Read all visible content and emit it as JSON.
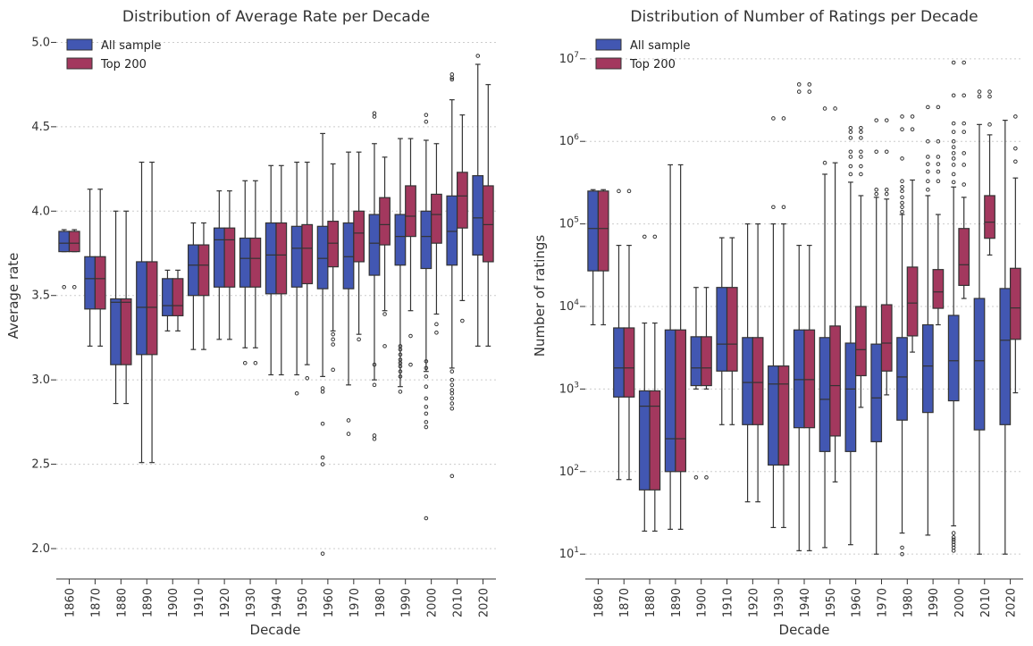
{
  "colors": {
    "all": "#4257b2",
    "top": "#a3385e",
    "edge": "#333333"
  },
  "chart_data": [
    {
      "type": "box",
      "title": "Distribution of Average Rate per Decade",
      "xlabel": "Decade",
      "ylabel": "Average rate",
      "ylim": [
        1.82,
        5.05
      ],
      "scale": "linear",
      "yticks": [
        2.0,
        2.5,
        3.0,
        3.5,
        4.0,
        4.5,
        5.0
      ],
      "ytick_labels": [
        "2.0",
        "2.5",
        "3.0",
        "3.5",
        "4.0",
        "4.5",
        "5.0"
      ],
      "grid": true,
      "legend_position": "top-left",
      "categories": [
        "1860",
        "1870",
        "1880",
        "1890",
        "1900",
        "1910",
        "1920",
        "1930",
        "1940",
        "1950",
        "1960",
        "1970",
        "1980",
        "1990",
        "2000",
        "2010",
        "2020"
      ],
      "series": [
        {
          "name": "All sample",
          "boxes": [
            {
              "wl": 3.76,
              "q1": 3.76,
              "med": 3.81,
              "q3": 3.88,
              "wh": 3.89,
              "fl": [
                3.55
              ]
            },
            {
              "wl": 3.2,
              "q1": 3.42,
              "med": 3.6,
              "q3": 3.73,
              "wh": 4.13,
              "fl": []
            },
            {
              "wl": 2.86,
              "q1": 3.09,
              "med": 3.46,
              "q3": 3.48,
              "wh": 4.0,
              "fl": []
            },
            {
              "wl": 2.51,
              "q1": 3.15,
              "med": 3.43,
              "q3": 3.7,
              "wh": 4.29,
              "fl": []
            },
            {
              "wl": 3.29,
              "q1": 3.38,
              "med": 3.44,
              "q3": 3.6,
              "wh": 3.65,
              "fl": []
            },
            {
              "wl": 3.18,
              "q1": 3.5,
              "med": 3.68,
              "q3": 3.8,
              "wh": 3.93,
              "fl": []
            },
            {
              "wl": 3.24,
              "q1": 3.55,
              "med": 3.83,
              "q3": 3.9,
              "wh": 4.12,
              "fl": []
            },
            {
              "wl": 3.19,
              "q1": 3.55,
              "med": 3.72,
              "q3": 3.84,
              "wh": 4.18,
              "fl": [
                3.1
              ]
            },
            {
              "wl": 3.03,
              "q1": 3.51,
              "med": 3.74,
              "q3": 3.93,
              "wh": 4.27,
              "fl": []
            },
            {
              "wl": 3.03,
              "q1": 3.55,
              "med": 3.78,
              "q3": 3.91,
              "wh": 4.29,
              "fl": [
                2.92
              ]
            },
            {
              "wl": 3.02,
              "q1": 3.54,
              "med": 3.72,
              "q3": 3.91,
              "wh": 4.46,
              "fl": [
                2.95,
                2.93,
                2.74,
                2.54,
                2.5,
                1.97
              ]
            },
            {
              "wl": 2.97,
              "q1": 3.54,
              "med": 3.73,
              "q3": 3.93,
              "wh": 4.35,
              "fl": [
                2.76,
                2.68
              ]
            },
            {
              "wl": 3.0,
              "q1": 3.62,
              "med": 3.81,
              "q3": 3.98,
              "wh": 4.4,
              "fl": [
                4.58,
                4.56,
                3.09,
                2.97,
                2.67,
                2.65
              ]
            },
            {
              "wl": 2.96,
              "q1": 3.68,
              "med": 3.85,
              "q3": 3.98,
              "wh": 4.43,
              "fl": [
                3.2,
                3.18,
                3.15,
                3.12,
                3.1,
                3.08,
                3.05,
                3.02,
                2.93
              ]
            },
            {
              "wl": 3.05,
              "q1": 3.66,
              "med": 3.85,
              "q3": 4.0,
              "wh": 4.42,
              "fl": [
                4.57,
                4.53,
                3.11,
                3.07,
                3.02,
                2.96,
                2.89,
                2.84,
                2.8,
                2.75,
                2.72,
                2.18
              ]
            },
            {
              "wl": 3.07,
              "q1": 3.68,
              "med": 3.88,
              "q3": 4.09,
              "wh": 4.66,
              "fl": [
                4.81,
                4.79,
                4.78,
                3.05,
                3.0,
                2.97,
                2.94,
                2.92,
                2.89,
                2.86,
                2.83,
                2.43
              ]
            },
            {
              "wl": 3.2,
              "q1": 3.74,
              "med": 3.96,
              "q3": 4.21,
              "wh": 4.87,
              "fl": [
                4.92
              ]
            }
          ]
        },
        {
          "name": "Top 200",
          "boxes": [
            {
              "wl": 3.76,
              "q1": 3.76,
              "med": 3.81,
              "q3": 3.88,
              "wh": 3.89,
              "fl": [
                3.55
              ]
            },
            {
              "wl": 3.2,
              "q1": 3.42,
              "med": 3.6,
              "q3": 3.73,
              "wh": 4.13,
              "fl": []
            },
            {
              "wl": 2.86,
              "q1": 3.09,
              "med": 3.46,
              "q3": 3.48,
              "wh": 4.0,
              "fl": []
            },
            {
              "wl": 2.51,
              "q1": 3.15,
              "med": 3.43,
              "q3": 3.7,
              "wh": 4.29,
              "fl": []
            },
            {
              "wl": 3.29,
              "q1": 3.38,
              "med": 3.44,
              "q3": 3.6,
              "wh": 3.65,
              "fl": []
            },
            {
              "wl": 3.18,
              "q1": 3.5,
              "med": 3.68,
              "q3": 3.8,
              "wh": 3.93,
              "fl": []
            },
            {
              "wl": 3.24,
              "q1": 3.55,
              "med": 3.83,
              "q3": 3.9,
              "wh": 4.12,
              "fl": []
            },
            {
              "wl": 3.19,
              "q1": 3.55,
              "med": 3.72,
              "q3": 3.84,
              "wh": 4.18,
              "fl": [
                3.1
              ]
            },
            {
              "wl": 3.03,
              "q1": 3.51,
              "med": 3.74,
              "q3": 3.93,
              "wh": 4.27,
              "fl": []
            },
            {
              "wl": 3.09,
              "q1": 3.57,
              "med": 3.78,
              "q3": 3.92,
              "wh": 4.29,
              "fl": [
                3.01
              ]
            },
            {
              "wl": 3.29,
              "q1": 3.67,
              "med": 3.81,
              "q3": 3.94,
              "wh": 4.28,
              "fl": [
                3.27,
                3.24,
                3.21,
                3.06
              ]
            },
            {
              "wl": 3.27,
              "q1": 3.7,
              "med": 3.87,
              "q3": 4.0,
              "wh": 4.35,
              "fl": [
                3.24
              ]
            },
            {
              "wl": 3.41,
              "q1": 3.8,
              "med": 3.92,
              "q3": 4.08,
              "wh": 4.32,
              "fl": [
                3.39,
                3.2
              ]
            },
            {
              "wl": 3.41,
              "q1": 3.85,
              "med": 3.97,
              "q3": 4.15,
              "wh": 4.43,
              "fl": [
                3.26,
                3.09
              ]
            },
            {
              "wl": 3.39,
              "q1": 3.81,
              "med": 3.98,
              "q3": 4.1,
              "wh": 4.4,
              "fl": [
                3.33,
                3.28
              ]
            },
            {
              "wl": 3.47,
              "q1": 3.9,
              "med": 4.09,
              "q3": 4.23,
              "wh": 4.57,
              "fl": [
                3.35
              ]
            },
            {
              "wl": 3.2,
              "q1": 3.7,
              "med": 3.92,
              "q3": 4.15,
              "wh": 4.75,
              "fl": []
            }
          ]
        }
      ]
    },
    {
      "type": "box",
      "title": "Distribution of Number of Ratings per Decade",
      "xlabel": "Decade",
      "ylabel": "Number of ratings",
      "scale": "log",
      "ylim": [
        5.0,
        20000000
      ],
      "yticks": [
        10,
        100,
        1000,
        10000,
        100000,
        1000000,
        10000000
      ],
      "ytick_mantissa": [
        "10",
        "10",
        "10",
        "10",
        "10",
        "10",
        "10"
      ],
      "ytick_exponents": [
        "1",
        "2",
        "3",
        "4",
        "5",
        "6",
        "7"
      ],
      "grid": true,
      "legend_position": "top-left",
      "categories": [
        "1860",
        "1870",
        "1880",
        "1890",
        "1900",
        "1910",
        "1920",
        "1930",
        "1940",
        "1950",
        "1960",
        "1970",
        "1980",
        "1990",
        "2000",
        "2010",
        "2020"
      ],
      "series": [
        {
          "name": "All sample",
          "boxes": [
            {
              "wl": 6000,
              "q1": 27000,
              "med": 88000,
              "q3": 250000,
              "wh": 260000,
              "fl": []
            },
            {
              "wl": 80,
              "q1": 800,
              "med": 1800,
              "q3": 5500,
              "wh": 55000,
              "fl": [
                250000
              ]
            },
            {
              "wl": 19,
              "q1": 60,
              "med": 620,
              "q3": 950,
              "wh": 6300,
              "fl": [
                70000
              ]
            },
            {
              "wl": 20,
              "q1": 100,
              "med": 250,
              "q3": 5200,
              "wh": 520000,
              "fl": []
            },
            {
              "wl": 1000,
              "q1": 1100,
              "med": 1800,
              "q3": 4300,
              "wh": 17000,
              "fl": [
                85
              ]
            },
            {
              "wl": 370,
              "q1": 1650,
              "med": 3500,
              "q3": 17000,
              "wh": 68000,
              "fl": []
            },
            {
              "wl": 43,
              "q1": 370,
              "med": 1200,
              "q3": 4200,
              "wh": 100000,
              "fl": []
            },
            {
              "wl": 21,
              "q1": 120,
              "med": 1150,
              "q3": 1900,
              "wh": 100000,
              "fl": [
                160000,
                1900000
              ]
            },
            {
              "wl": 11,
              "q1": 340,
              "med": 1300,
              "q3": 5200,
              "wh": 55000,
              "fl": [
                4000000,
                4900000
              ]
            },
            {
              "wl": 12,
              "q1": 175,
              "med": 750,
              "q3": 4200,
              "wh": 400000,
              "fl": [
                550000,
                2500000
              ]
            },
            {
              "wl": 13,
              "q1": 175,
              "med": 1000,
              "q3": 3600,
              "wh": 320000,
              "fl": [
                400000,
                500000,
                650000,
                750000,
                1100000,
                1300000,
                1450000
              ]
            },
            {
              "wl": 10,
              "q1": 230,
              "med": 780,
              "q3": 3500,
              "wh": 210000,
              "fl": [
                230000,
                260000,
                750000,
                1800000
              ]
            },
            {
              "wl": 18,
              "q1": 420,
              "med": 1400,
              "q3": 4200,
              "wh": 130000,
              "fl": [
                10,
                12,
                140000,
                160000,
                180000,
                210000,
                250000,
                280000,
                330000,
                620000,
                1400000,
                2000000
              ]
            },
            {
              "wl": 17,
              "q1": 520,
              "med": 1900,
              "q3": 6000,
              "wh": 220000,
              "fl": [
                260000,
                330000,
                430000,
                530000,
                650000,
                1000000,
                2600000
              ]
            },
            {
              "wl": 22,
              "q1": 720,
              "med": 2200,
              "q3": 7800,
              "wh": 280000,
              "fl": [
                11,
                12,
                13,
                14,
                15,
                16,
                18,
                320000,
                400000,
                520000,
                620000,
                720000,
                850000,
                1000000,
                1300000,
                1650000,
                3600000,
                9000000
              ]
            },
            {
              "wl": 10,
              "q1": 320,
              "med": 2200,
              "q3": 12500,
              "wh": 1600000,
              "fl": [
                3500000,
                4000000
              ]
            },
            {
              "wl": 10,
              "q1": 370,
              "med": 3900,
              "q3": 16500,
              "wh": 1800000,
              "fl": []
            }
          ]
        },
        {
          "name": "Top 200",
          "boxes": [
            {
              "wl": 6000,
              "q1": 27000,
              "med": 88000,
              "q3": 250000,
              "wh": 260000,
              "fl": []
            },
            {
              "wl": 80,
              "q1": 800,
              "med": 1800,
              "q3": 5500,
              "wh": 55000,
              "fl": [
                250000
              ]
            },
            {
              "wl": 19,
              "q1": 60,
              "med": 620,
              "q3": 950,
              "wh": 6300,
              "fl": [
                70000
              ]
            },
            {
              "wl": 20,
              "q1": 100,
              "med": 250,
              "q3": 5200,
              "wh": 520000,
              "fl": []
            },
            {
              "wl": 1000,
              "q1": 1100,
              "med": 1800,
              "q3": 4300,
              "wh": 17000,
              "fl": [
                85
              ]
            },
            {
              "wl": 370,
              "q1": 1650,
              "med": 3500,
              "q3": 17000,
              "wh": 68000,
              "fl": []
            },
            {
              "wl": 43,
              "q1": 370,
              "med": 1200,
              "q3": 4200,
              "wh": 100000,
              "fl": []
            },
            {
              "wl": 21,
              "q1": 120,
              "med": 1150,
              "q3": 1900,
              "wh": 100000,
              "fl": [
                160000,
                1900000
              ]
            },
            {
              "wl": 11,
              "q1": 340,
              "med": 1300,
              "q3": 5200,
              "wh": 55000,
              "fl": [
                4000000,
                4900000
              ]
            },
            {
              "wl": 75,
              "q1": 270,
              "med": 1100,
              "q3": 5800,
              "wh": 550000,
              "fl": [
                2500000
              ]
            },
            {
              "wl": 600,
              "q1": 1450,
              "med": 3000,
              "q3": 10000,
              "wh": 220000,
              "fl": [
                400000,
                500000,
                650000,
                750000,
                1100000,
                1300000,
                1450000
              ]
            },
            {
              "wl": 850,
              "q1": 1650,
              "med": 3600,
              "q3": 10500,
              "wh": 200000,
              "fl": [
                230000,
                260000,
                750000,
                1800000
              ]
            },
            {
              "wl": 2800,
              "q1": 4400,
              "med": 11000,
              "q3": 30000,
              "wh": 340000,
              "fl": [
                1400000,
                2000000
              ]
            },
            {
              "wl": 6000,
              "q1": 9500,
              "med": 15000,
              "q3": 28000,
              "wh": 130000,
              "fl": [
                330000,
                430000,
                530000,
                650000,
                1000000,
                2600000
              ]
            },
            {
              "wl": 12500,
              "q1": 18000,
              "med": 32000,
              "q3": 88000,
              "wh": 210000,
              "fl": [
                300000,
                520000,
                720000,
                1300000,
                1650000,
                3600000,
                9000000
              ]
            },
            {
              "wl": 42000,
              "q1": 67000,
              "med": 105000,
              "q3": 220000,
              "wh": 1200000,
              "fl": [
                1600000,
                3500000,
                4000000
              ]
            },
            {
              "wl": 900,
              "q1": 4000,
              "med": 9600,
              "q3": 29000,
              "wh": 360000,
              "fl": [
                570000,
                820000,
                2000000
              ]
            }
          ]
        }
      ]
    }
  ]
}
